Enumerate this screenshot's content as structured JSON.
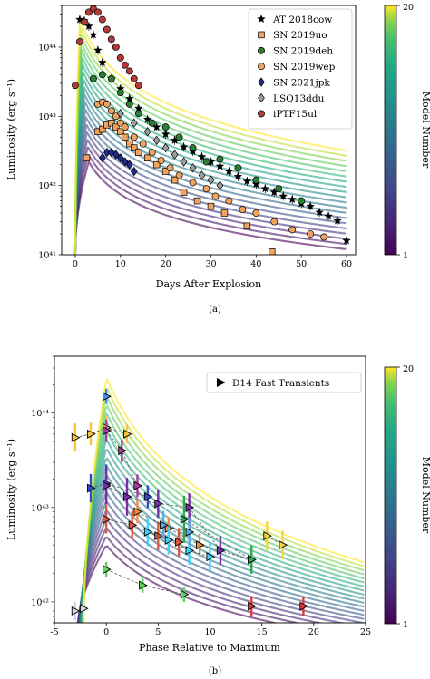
{
  "panel_a_caption": "(a)",
  "panel_b_caption": "(b)",
  "colorbar": {
    "label": "Model Number",
    "max_label": "20",
    "min_label": "1"
  },
  "chart_data": [
    {
      "type": "line",
      "panel": "(a)",
      "xlabel": "Days After Explosion",
      "ylabel": "Luminosity (erg s⁻¹)",
      "y_scale": "log",
      "xlim": [
        -3,
        62
      ],
      "ylim": [
        1e+41,
        4e+44
      ],
      "x_ticks": [
        0,
        10,
        20,
        30,
        40,
        50,
        60
      ],
      "y_ticks": [
        {
          "value": 1e+41,
          "label": "10⁴¹"
        },
        {
          "value": 1e+42,
          "label": "10⁴²"
        },
        {
          "value": 1e+43,
          "label": "10⁴³"
        },
        {
          "value": 1e+44,
          "label": "10⁴⁴"
        }
      ],
      "legend_placement": "top-right",
      "model_curves": {
        "count": 20,
        "peak_day_first": 3.0,
        "peak_day_last": 1.0,
        "peak_lum_min": 2.2e+42,
        "peak_lum_max": 2.5e+44,
        "tail_lum_min": 1.2e+41,
        "tail_lum_max": 3.2e+42,
        "tail_day": 60
      },
      "series": [
        {
          "name": "AT 2018cow",
          "marker": "star",
          "color": "#000000",
          "points": [
            [
              1.0,
              2.5e+44
            ],
            [
              2.0,
              2.4e+44
            ],
            [
              3.0,
              2e+44
            ],
            [
              4.0,
              1.5e+44
            ],
            [
              5.0,
              9e+43
            ],
            [
              6.0,
              6e+43
            ],
            [
              8.0,
              3.5e+43
            ],
            [
              10.0,
              2.5e+43
            ],
            [
              12.0,
              1.8e+43
            ],
            [
              14.0,
              1.3e+43
            ],
            [
              16.0,
              9e+42
            ],
            [
              18.0,
              7e+42
            ],
            [
              20.0,
              5.5e+42
            ],
            [
              22.0,
              4.5e+42
            ],
            [
              24.0,
              3.6e+42
            ],
            [
              26.0,
              3.1e+42
            ],
            [
              28.0,
              2.6e+42
            ],
            [
              30.0,
              2.2e+42
            ],
            [
              32.0,
              1.9e+42
            ],
            [
              34.0,
              1.6e+42
            ],
            [
              36.0,
              1.35e+42
            ],
            [
              38.0,
              1.15e+42
            ],
            [
              40.0,
              1.05e+42
            ],
            [
              42.0,
              9e+41
            ],
            [
              44.0,
              8e+41
            ],
            [
              46.0,
              7e+41
            ],
            [
              48.0,
              6.3e+41
            ],
            [
              50.0,
              5.5e+41
            ],
            [
              52.0,
              5e+41
            ],
            [
              54.0,
              4.1e+41
            ],
            [
              56.0,
              3.6e+41
            ],
            [
              58.0,
              3.1e+41
            ],
            [
              60.0,
              1.6e+41
            ]
          ]
        },
        {
          "name": "SN 2019uo",
          "marker": "square",
          "color": "#f0a35e",
          "points": [
            [
              2.5,
              2.5e+42
            ],
            [
              5.0,
              6e+42
            ],
            [
              6.0,
              6.5e+42
            ],
            [
              7.0,
              7.5e+42
            ],
            [
              8.0,
              8e+42
            ],
            [
              9.0,
              7e+42
            ],
            [
              10.0,
              6e+42
            ],
            [
              11.0,
              5e+42
            ],
            [
              12.0,
              4e+42
            ],
            [
              13.0,
              3.5e+42
            ],
            [
              14.0,
              3e+42
            ],
            [
              16.0,
              2.5e+42
            ],
            [
              18.0,
              2e+42
            ],
            [
              20.0,
              1.6e+42
            ],
            [
              22.0,
              1.2e+42
            ],
            [
              24.0,
              8e+41
            ],
            [
              27.0,
              6e+41
            ],
            [
              30.0,
              5e+41
            ],
            [
              33.0,
              4e+41
            ],
            [
              38.0,
              2.6e+41
            ],
            [
              43.5,
              1.1e+41
            ]
          ]
        },
        {
          "name": "SN 2019deh",
          "marker": "circle",
          "color": "#2e7d32",
          "points": [
            [
              4.0,
              3.5e+43
            ],
            [
              6.0,
              4e+43
            ],
            [
              8.0,
              3.5e+43
            ],
            [
              10.0,
              2.2e+43
            ],
            [
              12.0,
              1.5e+43
            ],
            [
              14.0,
              1.1e+43
            ],
            [
              17.0,
              8e+42
            ],
            [
              20.0,
              7e+42
            ],
            [
              23.0,
              5e+42
            ],
            [
              26.0,
              3.5e+42
            ],
            [
              29.0,
              2.2e+42
            ],
            [
              32.0,
              2.4e+42
            ],
            [
              36.0,
              1.8e+42
            ],
            [
              40.0,
              1.2e+42
            ],
            [
              45.0,
              9e+41
            ],
            [
              50.0,
              6e+41
            ]
          ]
        },
        {
          "name": "SN 2019wep",
          "marker": "circle",
          "color": "#f0a35e",
          "points": [
            [
              5.0,
              1.5e+43
            ],
            [
              6.0,
              1.6e+43
            ],
            [
              7.0,
              1.5e+43
            ],
            [
              8.0,
              1.2e+43
            ],
            [
              9.0,
              1e+43
            ],
            [
              10.0,
              8e+42
            ],
            [
              11.0,
              7e+42
            ],
            [
              13.0,
              5e+42
            ],
            [
              15.0,
              4e+42
            ],
            [
              17.0,
              3e+42
            ],
            [
              19.0,
              2.3e+42
            ],
            [
              21.0,
              1.8e+42
            ],
            [
              23.0,
              1.4e+42
            ],
            [
              26.0,
              1.1e+42
            ],
            [
              29.0,
              9e+41
            ],
            [
              31.0,
              7e+41
            ],
            [
              34.0,
              6e+41
            ],
            [
              37.0,
              4.5e+41
            ],
            [
              40.0,
              4e+41
            ],
            [
              44.0,
              3e+41
            ],
            [
              48.0,
              2.3e+41
            ],
            [
              52.0,
              2e+41
            ],
            [
              55.0,
              1.8e+41
            ]
          ]
        },
        {
          "name": "SN 2021jpk",
          "marker": "diamond",
          "color": "#1f2a8a",
          "points": [
            [
              6.0,
              2.5e+42
            ],
            [
              7.0,
              3e+42
            ],
            [
              8.0,
              3e+42
            ],
            [
              9.0,
              2.8e+42
            ],
            [
              10.0,
              2.5e+42
            ],
            [
              11.0,
              2.2e+42
            ],
            [
              12.0,
              2e+42
            ],
            [
              13.0,
              1.6e+42
            ]
          ]
        },
        {
          "name": "LSQ13ddu",
          "marker": "diamond",
          "color": "#9e9e9e",
          "points": [
            [
              10.0,
              1.1e+43
            ],
            [
              13.0,
              8e+42
            ],
            [
              16.0,
              6e+42
            ],
            [
              18.0,
              4.5e+42
            ],
            [
              20.0,
              3.5e+42
            ],
            [
              22.0,
              2.8e+42
            ],
            [
              24.0,
              2.2e+42
            ],
            [
              26.0,
              1.8e+42
            ],
            [
              28.0,
              1.4e+42
            ],
            [
              30.0,
              1.2e+42
            ],
            [
              32.0,
              1e+42
            ]
          ]
        },
        {
          "name": "iPTF15ul",
          "marker": "circle",
          "color": "#b33a3a",
          "points": [
            [
              0.0,
              2.8e+43
            ],
            [
              1.0,
              1.2e+44
            ],
            [
              2.0,
              2.3e+44
            ],
            [
              3.0,
              3.2e+44
            ],
            [
              4.0,
              3.6e+44
            ],
            [
              5.0,
              3.2e+44
            ],
            [
              6.0,
              2.5e+44
            ],
            [
              7.0,
              1.8e+44
            ],
            [
              8.0,
              1.3e+44
            ],
            [
              9.0,
              1e+44
            ],
            [
              10.0,
              7e+43
            ],
            [
              11.0,
              5.5e+43
            ],
            [
              12.0,
              4.5e+43
            ],
            [
              13.0,
              3.5e+43
            ],
            [
              14.0,
              2.8e+43
            ]
          ]
        }
      ]
    },
    {
      "type": "line",
      "panel": "(b)",
      "xlabel": "Phase Relative to Maximum",
      "ylabel": "Luminosity (erg s⁻¹)",
      "y_scale": "log",
      "xlim": [
        -5,
        25
      ],
      "ylim": [
        6e+41,
        4e+44
      ],
      "x_ticks": [
        -5,
        0,
        5,
        10,
        15,
        20,
        25
      ],
      "y_ticks": [
        {
          "value": 1e+42,
          "label": "10⁴²"
        },
        {
          "value": 1e+43,
          "label": "10⁴³"
        },
        {
          "value": 1e+44,
          "label": "10⁴⁴"
        }
      ],
      "legend_placement": "top-right",
      "model_curves": {
        "count": 20,
        "peak_lum_min": 4e+42,
        "peak_lum_max": 2.4e+44,
        "tail_lum_min": 4e+41,
        "tail_lum_max": 2.6e+42,
        "tail_day": 25
      },
      "series": [
        {
          "name": "D14 Fast Transients",
          "marker": "triangle-right",
          "color": "#000000",
          "transients": [
            {
              "color": "#f5c542",
              "points": [
                [
                  -3.0,
                  5.5e+43
                ],
                [
                  -1.5,
                  6e+43
                ],
                [
                  0,
                  7e+43
                ],
                [
                  2,
                  6e+43
                ]
              ],
              "errs": [
                0.15,
                0.12,
                0.12,
                0.1
              ]
            },
            {
              "color": "#cfd9ea",
              "points": [
                [
                  -3.0,
                  8e+41
                ],
                [
                  -2.2,
                  8.5e+41
                ]
              ],
              "errs": [
                0.1,
                0.1
              ]
            },
            {
              "color": "#3d8df5",
              "points": [
                [
                  0,
                  1.5e+44
                ]
              ],
              "errs": [
                0.08
              ]
            },
            {
              "color": "#3349c9",
              "points": [
                [
                  -1.5,
                  1.6e+43
                ],
                [
                  0,
                  1.8e+43
                ],
                [
                  4,
                  1.3e+43
                ]
              ],
              "errs": [
                0.15,
                0.2,
                0.12
              ]
            },
            {
              "color": "#7a2ea8",
              "points": [
                [
                  0,
                  1.7e+43
                ],
                [
                  2,
                  1.3e+43
                ],
                [
                  5,
                  1.1e+43
                ],
                [
                  8,
                  1e+43
                ],
                [
                  11,
                  3.5e+42
                ]
              ],
              "errs": [
                0.2,
                0.2,
                0.15,
                0.15,
                0.15
              ]
            },
            {
              "color": "#b03b9a",
              "points": [
                [
                  0,
                  6.5e+43
                ],
                [
                  1.5,
                  4e+43
                ],
                [
                  3,
                  1.7e+43
                ]
              ],
              "errs": [
                0.12,
                0.12,
                0.12
              ]
            },
            {
              "color": "#e05a3a",
              "points": [
                [
                  0,
                  7.5e+42
                ],
                [
                  2.5,
                  6.5e+42
                ],
                [
                  5,
                  5e+42
                ],
                [
                  7,
                  4.3e+42
                ]
              ],
              "errs": [
                0.15,
                0.15,
                0.15,
                0.15
              ]
            },
            {
              "color": "#f58a3a",
              "points": [
                [
                  3,
                  9e+42
                ],
                [
                  6,
                  6e+42
                ],
                [
                  9,
                  4e+42
                ],
                [
                  14,
                  2.8e+42
                ]
              ],
              "errs": [
                0.12,
                0.12,
                0.12,
                0.12
              ]
            },
            {
              "color": "#3fd4f5",
              "points": [
                [
                  4,
                  5.5e+42
                ],
                [
                  6,
                  4.5e+42
                ],
                [
                  8,
                  3.5e+42
                ],
                [
                  10,
                  3e+42
                ]
              ],
              "errs": [
                0.15,
                0.15,
                0.15,
                0.15
              ]
            },
            {
              "color": "#5fa8e0",
              "points": [
                [
                  5.5,
                  6.5e+42
                ],
                [
                  8,
                  5.5e+42
                ]
              ],
              "errs": [
                0.15,
                0.15
              ]
            },
            {
              "color": "#2fa84f",
              "points": [
                [
                  7.5,
                  7.5e+42
                ],
                [
                  14,
                  2.8e+42
                ]
              ],
              "errs": [
                0.25,
                0.15
              ]
            },
            {
              "color": "#f5d442",
              "points": [
                [
                  15.5,
                  5e+42
                ],
                [
                  17,
                  4e+42
                ]
              ],
              "errs": [
                0.15,
                0.15
              ]
            },
            {
              "color": "#5fd45f",
              "points": [
                [
                  0,
                  2.2e+42
                ],
                [
                  3.5,
                  1.5e+42
                ],
                [
                  7.5,
                  1.2e+42
                ]
              ],
              "errs": [
                0.08,
                0.08,
                0.08
              ]
            },
            {
              "color": "#e03a3a",
              "points": [
                [
                  14,
                  9e+41
                ],
                [
                  19,
                  9e+41
                ]
              ],
              "errs": [
                0.1,
                0.1
              ]
            }
          ]
        }
      ]
    }
  ]
}
